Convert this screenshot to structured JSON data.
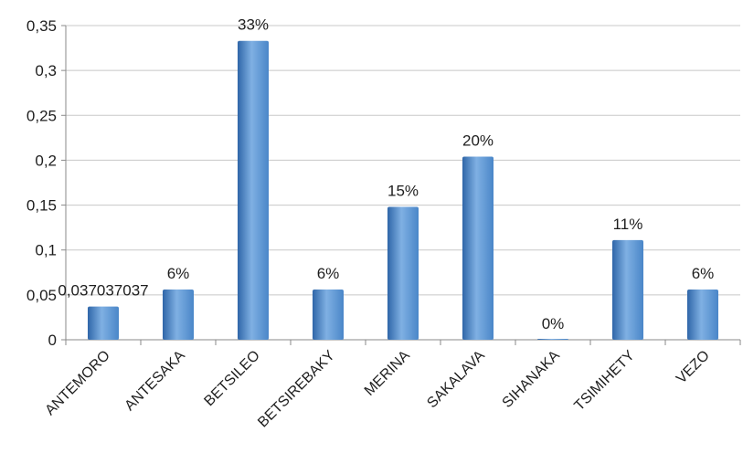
{
  "chart_data": {
    "type": "bar",
    "title": "",
    "xlabel": "",
    "ylabel": "",
    "categories": [
      "ANTEMORO",
      "ANTESAKA",
      "BETSILEO",
      "BETSIREBAKY",
      "MERINA",
      "SAKALAVA",
      "SIHANAKA",
      "TSIMIHETY",
      "VEZO"
    ],
    "values": [
      0.037037037,
      0.056,
      0.333,
      0.056,
      0.148,
      0.204,
      0.0,
      0.111,
      0.056
    ],
    "data_labels": [
      "0,037037037",
      "6%",
      "33%",
      "6%",
      "15%",
      "20%",
      "0%",
      "11%",
      "6%"
    ],
    "ylim": [
      0,
      0.35
    ],
    "yticks": [
      0,
      0.05,
      0.1,
      0.15,
      0.2,
      0.25,
      0.3,
      0.35
    ],
    "ytick_labels": [
      "0",
      "0,05",
      "0,1",
      "0,15",
      "0,2",
      "0,25",
      "0,3",
      "0,35"
    ],
    "grid": true,
    "legend": "none",
    "bar_color": "#4a86c8",
    "bar_color_light": "#7fb0e3",
    "bar_color_dark": "#2f66a8",
    "grid_color": "#c8c8c8"
  }
}
